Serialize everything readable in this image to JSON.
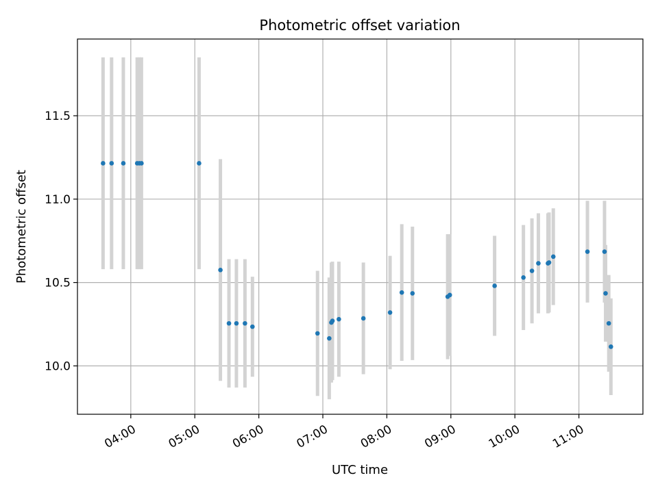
{
  "chart_data": {
    "type": "scatter",
    "title": "Photometric offset variation",
    "xlabel": "UTC time",
    "ylabel": "Photometric offset",
    "x_unit": "UTC time (HH:MM)",
    "xlim": [
      "03:10",
      "12:00"
    ],
    "ylim": [
      9.71,
      11.96
    ],
    "x_ticks": [
      "04:00",
      "05:00",
      "06:00",
      "07:00",
      "08:00",
      "09:00",
      "10:00",
      "11:00"
    ],
    "y_ticks": [
      "10.0",
      "10.5",
      "11.0",
      "11.5"
    ],
    "y_tick_values": [
      10.0,
      10.5,
      11.0,
      11.5
    ],
    "grid": true,
    "marker_color": "#1f77b4",
    "errorbar_color": "#d3d3d3",
    "series": [
      {
        "points": [
          {
            "x": "03:34",
            "y": 11.215,
            "err": 0.635
          },
          {
            "x": "03:42",
            "y": 11.215,
            "err": 0.635
          },
          {
            "x": "03:53",
            "y": 11.215,
            "err": 0.635
          },
          {
            "x": "04:06",
            "y": 11.215,
            "err": 0.635
          },
          {
            "x": "04:08",
            "y": 11.215,
            "err": 0.635
          },
          {
            "x": "04:10",
            "y": 11.215,
            "err": 0.635
          },
          {
            "x": "05:04",
            "y": 11.215,
            "err": 0.635
          },
          {
            "x": "05:24",
            "y": 10.575,
            "err": 0.665
          },
          {
            "x": "05:32",
            "y": 10.255,
            "err": 0.385
          },
          {
            "x": "05:39",
            "y": 10.255,
            "err": 0.385
          },
          {
            "x": "05:47",
            "y": 10.255,
            "err": 0.385
          },
          {
            "x": "05:54",
            "y": 10.235,
            "err": 0.3
          },
          {
            "x": "06:55",
            "y": 10.195,
            "err": 0.375
          },
          {
            "x": "07:06",
            "y": 10.165,
            "err": 0.365
          },
          {
            "x": "07:08",
            "y": 10.26,
            "err": 0.36
          },
          {
            "x": "07:09",
            "y": 10.27,
            "err": 0.355
          },
          {
            "x": "07:15",
            "y": 10.28,
            "err": 0.345
          },
          {
            "x": "07:38",
            "y": 10.285,
            "err": 0.335
          },
          {
            "x": "08:03",
            "y": 10.32,
            "err": 0.34
          },
          {
            "x": "08:14",
            "y": 10.44,
            "err": 0.41
          },
          {
            "x": "08:24",
            "y": 10.435,
            "err": 0.4
          },
          {
            "x": "08:57",
            "y": 10.415,
            "err": 0.375
          },
          {
            "x": "08:59",
            "y": 10.425,
            "err": 0.365
          },
          {
            "x": "09:41",
            "y": 10.48,
            "err": 0.3
          },
          {
            "x": "10:08",
            "y": 10.53,
            "err": 0.315
          },
          {
            "x": "10:16",
            "y": 10.57,
            "err": 0.315
          },
          {
            "x": "10:22",
            "y": 10.615,
            "err": 0.3
          },
          {
            "x": "10:31",
            "y": 10.615,
            "err": 0.3
          },
          {
            "x": "10:32",
            "y": 10.62,
            "err": 0.3
          },
          {
            "x": "10:36",
            "y": 10.655,
            "err": 0.29
          },
          {
            "x": "11:08",
            "y": 10.685,
            "err": 0.305
          },
          {
            "x": "11:24",
            "y": 10.685,
            "err": 0.305
          },
          {
            "x": "11:25",
            "y": 10.435,
            "err": 0.29
          },
          {
            "x": "11:28",
            "y": 10.255,
            "err": 0.29
          },
          {
            "x": "11:30",
            "y": 10.115,
            "err": 0.29
          }
        ]
      }
    ]
  }
}
